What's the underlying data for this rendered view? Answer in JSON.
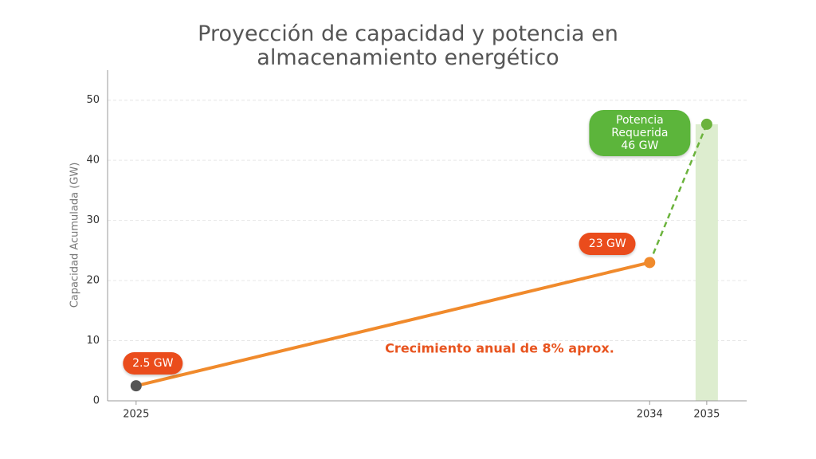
{
  "chart_data": {
    "type": "line",
    "title": [
      "Proyección de capacidad y potencia en",
      "almacenamiento energético"
    ],
    "ylabel": "Capacidad Acumulada (GW)",
    "annotation": "Crecimiento anual de 8% aprox.",
    "x": [
      2025,
      2034,
      2035
    ],
    "xlim": [
      2024.5,
      2035.7
    ],
    "xticks": [
      2025,
      2034,
      2035
    ],
    "ylim": [
      0,
      55
    ],
    "yticks": [
      0,
      10,
      20,
      30,
      40,
      50
    ],
    "grid": true,
    "series": [
      {
        "type": "line",
        "color": "#f08a2c",
        "marker_colors": [
          "#555555",
          "#f08a2c",
          null
        ],
        "values": [
          2.5,
          23,
          null
        ],
        "value_labels": [
          "2.5 GW",
          "23 GW",
          null
        ],
        "label_color": "#ea4c1c"
      },
      {
        "type": "line",
        "color": "#6bb33c",
        "dashed": true,
        "marker_colors": [
          null,
          null,
          "#6bb33c"
        ],
        "values": [
          null,
          23,
          46
        ],
        "value_labels": [
          null,
          null,
          "Potencia\nRequerida\n46 GW"
        ],
        "label_color": "#5cb53b"
      },
      {
        "type": "bar",
        "color": "#ddedcf",
        "values": [
          null,
          null,
          46
        ]
      }
    ]
  }
}
